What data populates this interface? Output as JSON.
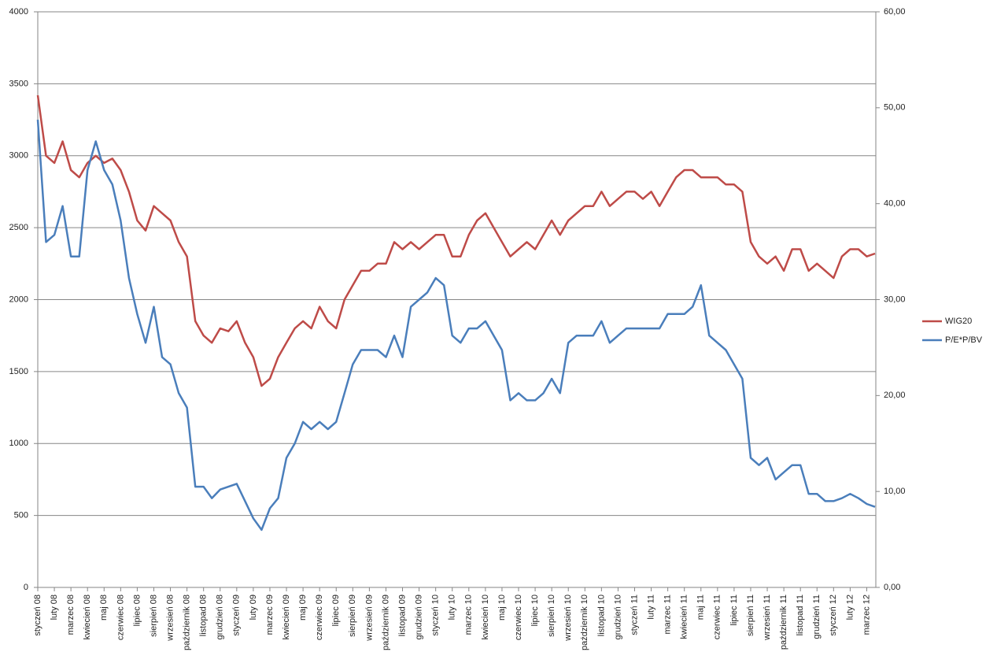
{
  "chart_data": {
    "type": "line",
    "categories": [
      "styczeń 08",
      null,
      "luty 08",
      null,
      "marzec 08",
      null,
      "kwiecień 08",
      null,
      "maj 08",
      null,
      "czerwiec 08",
      null,
      "lipiec 08",
      null,
      "sierpień 08",
      null,
      "wrzesień 08",
      null,
      "październik 08",
      null,
      "listopad 08",
      null,
      "grudzień 08",
      null,
      "styczeń 09",
      null,
      "luty 09",
      null,
      "marzec 09",
      null,
      "kwiecień 09",
      null,
      "maj 09",
      null,
      "czerwiec 09",
      null,
      "lipiec 09",
      null,
      "sierpień 09",
      null,
      "wrzesień 09",
      null,
      "październik 09",
      null,
      "listopad 09",
      null,
      "grudzień 09",
      null,
      "styczeń 10",
      null,
      "luty 10",
      null,
      "marzec 10",
      null,
      "kwiecień 10",
      null,
      "maj 10",
      null,
      "czerwiec 10",
      null,
      "lipiec 10",
      null,
      "sierpień 10",
      null,
      "wrzesień 10",
      null,
      "październik 10",
      null,
      "listopad 10",
      null,
      "grudzień 10",
      null,
      "styczeń 11",
      null,
      "luty 11",
      null,
      "marzec 11",
      null,
      "kwiecień 11",
      null,
      "maj 11",
      null,
      "czerwiec 11",
      null,
      "lipiec 11",
      null,
      "sierpień 11",
      null,
      "wrzesień 11",
      null,
      "październik 11",
      null,
      "listopad 11",
      null,
      "grudzień 11",
      null,
      "styczeń 12",
      null,
      "luty 12",
      null,
      "marzec 12",
      null
    ],
    "series": [
      {
        "name": "WIG20",
        "color": "#be4b48",
        "values": [
          3420,
          3000,
          2950,
          3100,
          2900,
          2850,
          2950,
          3000,
          2950,
          2980,
          2900,
          2750,
          2550,
          2480,
          2650,
          2600,
          2550,
          2400,
          2300,
          1850,
          1750,
          1700,
          1800,
          1780,
          1850,
          1700,
          1600,
          1400,
          1450,
          1600,
          1700,
          1800,
          1850,
          1800,
          1950,
          1850,
          1800,
          2000,
          2100,
          2200,
          2200,
          2250,
          2250,
          2400,
          2350,
          2400,
          2350,
          2400,
          2450,
          2450,
          2300,
          2300,
          2450,
          2550,
          2600,
          2500,
          2400,
          2300,
          2350,
          2400,
          2350,
          2450,
          2550,
          2450,
          2550,
          2600,
          2650,
          2650,
          2750,
          2650,
          2700,
          2750,
          2750,
          2700,
          2750,
          2650,
          2750,
          2850,
          2900,
          2900,
          2850,
          2850,
          2850,
          2800,
          2800,
          2750,
          2400,
          2300,
          2250,
          2300,
          2200,
          2350,
          2350,
          2200,
          2250,
          2200,
          2150,
          2300,
          2350,
          2350,
          2300,
          2320
        ]
      },
      {
        "name": "P/E*P/BV",
        "color": "#4a7ebb",
        "axis": "y2",
        "values": [
          48.75,
          36,
          36.75,
          39.75,
          34.5,
          34.5,
          43.5,
          46.5,
          43.5,
          42,
          38.25,
          32.25,
          28.5,
          25.5,
          29.25,
          24,
          23.25,
          20.25,
          18.75,
          10.5,
          10.5,
          9.3,
          10.2,
          10.5,
          10.8,
          9,
          7.2,
          6,
          8.25,
          9.3,
          13.5,
          15,
          17.25,
          16.5,
          17.25,
          16.5,
          17.25,
          20.25,
          23.25,
          24.75,
          24.75,
          24.75,
          24,
          26.25,
          24,
          29.25,
          30,
          30.75,
          32.25,
          31.5,
          26.25,
          25.5,
          27,
          27,
          27.75,
          26.25,
          24.75,
          19.5,
          20.25,
          19.5,
          19.5,
          20.25,
          21.75,
          20.25,
          25.5,
          26.25,
          26.25,
          26.25,
          27.75,
          25.5,
          26.25,
          27,
          27,
          27,
          27,
          27,
          28.5,
          28.5,
          28.5,
          29.25,
          31.5,
          26.25,
          25.5,
          24.75,
          23.25,
          21.75,
          13.5,
          12.75,
          13.5,
          11.25,
          12,
          12.75,
          12.75,
          9.75,
          9.75,
          9,
          9,
          9.3,
          9.75,
          9.3,
          8.7,
          8.4
        ]
      }
    ],
    "ylim": [
      0,
      4000
    ],
    "yticks": [
      0,
      500,
      1000,
      1500,
      2000,
      2500,
      3000,
      3500,
      4000
    ],
    "y2lim": [
      0,
      60
    ],
    "y2ticks": [
      {
        "value": 0,
        "label": "0,00"
      },
      {
        "value": 10,
        "label": "10,00"
      },
      {
        "value": 20,
        "label": "20,00"
      },
      {
        "value": 30,
        "label": "30,00"
      },
      {
        "value": 40,
        "label": "40,00"
      },
      {
        "value": 50,
        "label": "50,00"
      },
      {
        "value": 60,
        "label": "60,00"
      }
    ],
    "grid": true,
    "legend": "right"
  }
}
